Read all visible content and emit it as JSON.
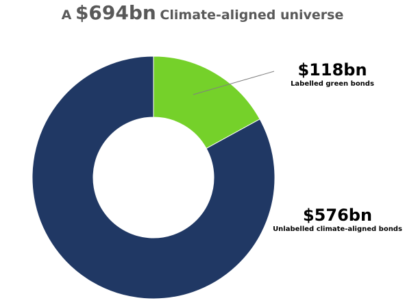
{
  "title": {
    "prefix": "A",
    "amount": "$694bn",
    "suffix": "Climate-aligned universe"
  },
  "colors": {
    "green": "#75d12a",
    "navy": "#203864",
    "leader": "#808080"
  },
  "chart_data": {
    "type": "pie",
    "donut": true,
    "total": 694,
    "unit": "$bn",
    "slices": [
      {
        "label": "Labelled green bonds",
        "value": 118,
        "value_label": "$118bn",
        "color": "#75d12a"
      },
      {
        "label": "Unlabelled climate-aligned bonds",
        "value": 576,
        "value_label": "$576bn",
        "color": "#203864"
      }
    ]
  }
}
